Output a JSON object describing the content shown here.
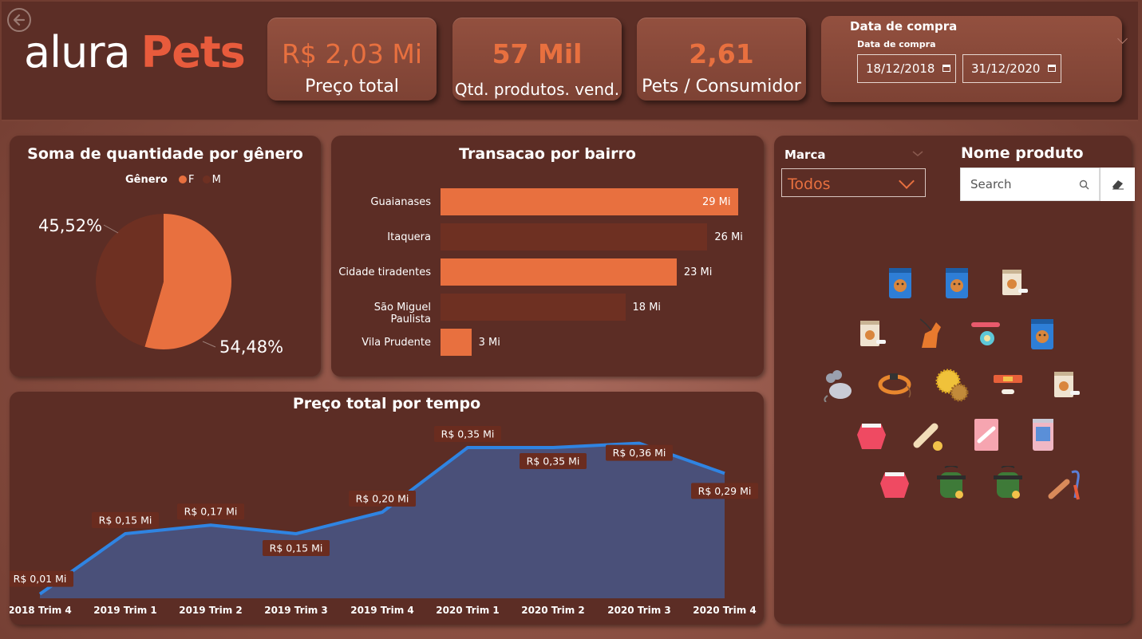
{
  "colors": {
    "accent": "#e8703f",
    "accent_dark": "#6e3022",
    "area": "#4a5079",
    "line": "#2f84e2",
    "label_bg": "#6a2c1f"
  },
  "header": {
    "logo_text_1": "alura",
    "logo_text_2": "Pets",
    "kpis": [
      {
        "value": "R$ 2,03 Mi",
        "label": "Preço total"
      },
      {
        "value": "57 Mil",
        "label": "Qtd. produtos. vend."
      },
      {
        "value": "2,61",
        "label": "Pets / Consumidor"
      }
    ],
    "date_filter": {
      "title": "Data de compra",
      "subtitle": "Data de compra",
      "start": "18/12/2018",
      "end": "31/12/2020"
    }
  },
  "filters": {
    "marca_label": "Marca",
    "marca_value": "Todos",
    "produto_label": "Nome produto",
    "search_placeholder": "Search"
  },
  "product_icons": [
    "pet-food-bag-icon",
    "pet-food-bag-icon",
    "pet-food-box-icon",
    "pet-food-box-icon",
    "dog-icon",
    "collar-tag-icon",
    "pet-food-bag-icon",
    "toy-mouse-icon",
    "collar-icon",
    "spiky-ball-icon",
    "bone-collar-icon",
    "pet-food-box-icon",
    "pet-jacket-icon",
    "bone-icon",
    "treat-bag-icon",
    "cat-food-can-icon",
    "pet-jacket-icon",
    "pet-vest-icon",
    "pet-vest-icon",
    "brush-leash-icon"
  ],
  "chart_data": [
    {
      "type": "pie",
      "title": "Soma de quantidade por gênero",
      "legend_title": "Gênero",
      "legend_position": "top",
      "labels": [
        "F",
        "M"
      ],
      "values": [
        54.48,
        45.52
      ],
      "value_labels": [
        "54,48%",
        "45,52%"
      ],
      "colors": [
        "#e8703f",
        "#6e3022"
      ]
    },
    {
      "type": "bar",
      "orientation": "horizontal",
      "title": "Transacao por bairro",
      "categories": [
        "Guaianases",
        "Itaquera",
        "Cidade tiradentes",
        "São Miguel Paulista",
        "Vila Prudente"
      ],
      "values": [
        29,
        26,
        23,
        18,
        3
      ],
      "value_labels": [
        "29 Mi",
        "26 Mi",
        "23 Mi",
        "18 Mi",
        "3 Mi"
      ],
      "bar_colors": [
        "#e8703f",
        "#6e3022",
        "#e8703f",
        "#6e3022",
        "#e8703f"
      ],
      "xlim": [
        0,
        30
      ]
    },
    {
      "type": "area",
      "title": "Preço total por tempo",
      "x": [
        "2018 Trim 4",
        "2019 Trim 1",
        "2019 Trim 2",
        "2019 Trim 3",
        "2019 Trim 4",
        "2020 Trim 1",
        "2020 Trim 2",
        "2020 Trim 3",
        "2020 Trim 4"
      ],
      "values": [
        0.01,
        0.15,
        0.17,
        0.15,
        0.2,
        0.35,
        0.35,
        0.36,
        0.29
      ],
      "value_labels": [
        "R$ 0,01 Mi",
        "R$ 0,15 Mi",
        "R$ 0,17 Mi",
        "R$ 0,15 Mi",
        "R$ 0,20 Mi",
        "R$ 0,35 Mi",
        "R$ 0,35 Mi",
        "R$ 0,36 Mi",
        "R$ 0,29 Mi"
      ],
      "ylim": [
        0,
        0.4
      ],
      "grid": false
    }
  ]
}
